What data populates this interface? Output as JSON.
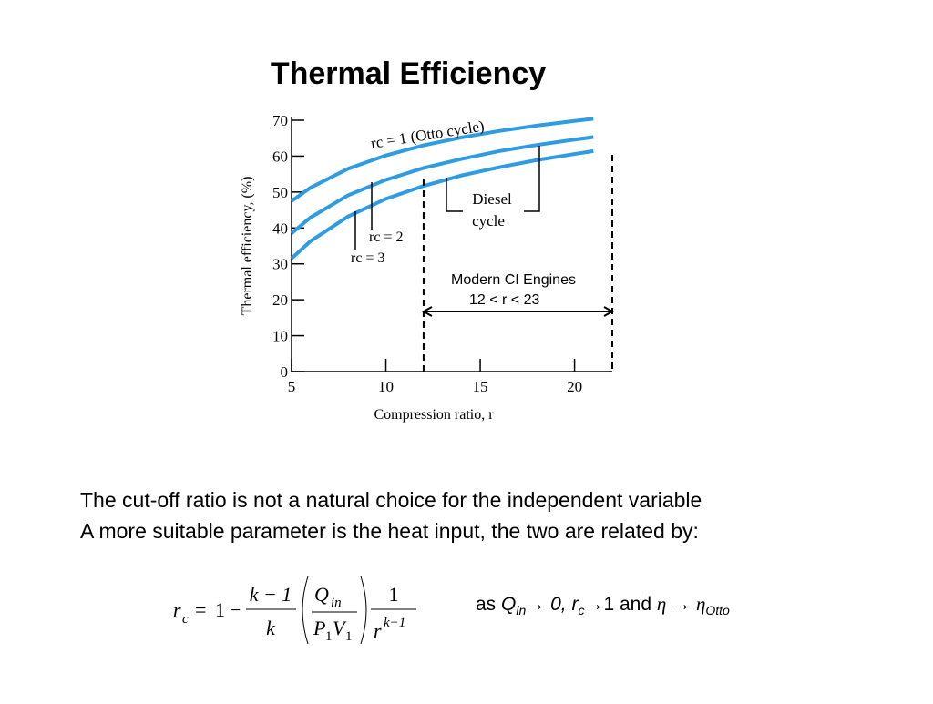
{
  "header": {
    "title": "Thermal Efficiency"
  },
  "chart_data": {
    "type": "line",
    "x_label": "Compression ratio, r",
    "y_label": "Thermal efficiency,   (%)",
    "x": [
      5,
      6,
      8,
      10,
      12,
      14,
      16,
      18,
      20,
      21
    ],
    "series": [
      {
        "name": "rc = 1 (Otto cycle)",
        "color": "#2f9be0",
        "values": [
          47.5,
          51.2,
          56.5,
          60.2,
          63.0,
          65.2,
          67.0,
          68.5,
          69.8,
          70.4
        ]
      },
      {
        "name": "rc = 2",
        "color": "#2f9be0",
        "values": [
          38.5,
          42.9,
          49.1,
          53.4,
          56.7,
          59.2,
          61.4,
          63.1,
          64.6,
          65.3
        ]
      },
      {
        "name": "rc = 3",
        "color": "#2f9be0",
        "values": [
          31.5,
          36.3,
          43.2,
          48.1,
          51.7,
          54.6,
          56.9,
          58.9,
          60.6,
          61.4
        ]
      }
    ],
    "xlim": [
      5,
      22
    ],
    "xticks": [
      5,
      10,
      15,
      20
    ],
    "ylim": [
      0,
      70
    ],
    "yticks": [
      0,
      10,
      20,
      30,
      40,
      50,
      60,
      70
    ],
    "annotations": {
      "diesel": "Diesel",
      "diesel2": "cycle",
      "modern": "Modern CI Engines",
      "range": "12 < r < 23"
    },
    "range_bounds": [
      12,
      22
    ]
  },
  "body": {
    "lines": [
      "The cut-off ratio is not a natural choice for the independent variable",
      "A more suitable parameter is the heat input, the two are related by:"
    ]
  },
  "equation": {
    "r": "r",
    "c": "c",
    "eq": "=",
    "one": "1",
    "minus": "−",
    "num1": "k − 1",
    "den1": "k",
    "Q": "Q",
    "in": "in",
    "P": "P",
    "p_sub": "1",
    "V": "V",
    "v_sub": "1",
    "num3": "1",
    "den_r": "r",
    "den_exp": "k−1"
  },
  "note": {
    "a": "as ",
    "Q": "Q",
    "in": "in",
    "b": "→ 0, r",
    "c": "c",
    "d": "→1 and ",
    "eta": "η",
    "e": " → ",
    "eta2": "η",
    "otto": "Otto"
  }
}
